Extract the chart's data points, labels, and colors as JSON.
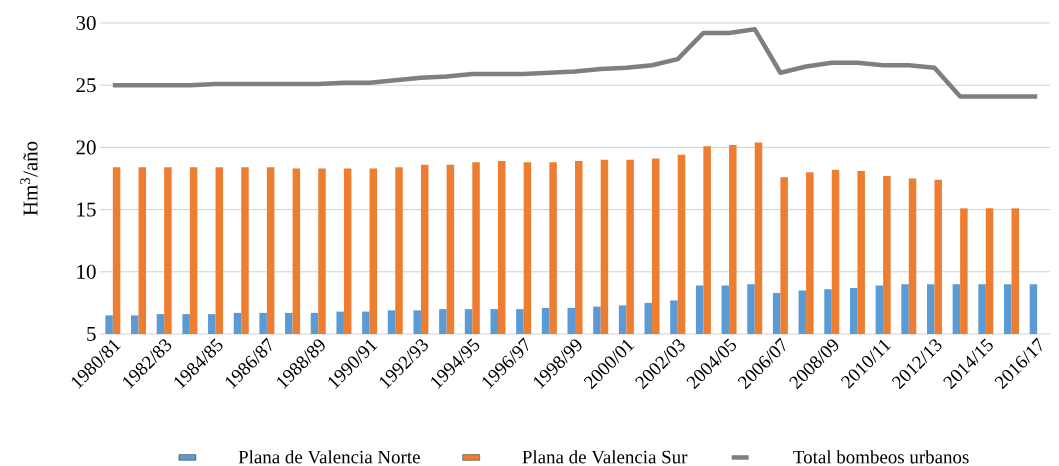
{
  "chart_data": {
    "type": "bar",
    "ylabel": "Hm$^{3}$/año",
    "categories": [
      "1980/81",
      null,
      "1982/83",
      null,
      "1984/85",
      null,
      "1986/87",
      null,
      "1988/89",
      null,
      "1990/91",
      null,
      "1992/93",
      null,
      "1994/95",
      null,
      "1996/97",
      null,
      "1998/99",
      null,
      "2000/01",
      null,
      "2002/03",
      null,
      "2004/05",
      null,
      "2006/07",
      null,
      "2008/09",
      null,
      "2010/11",
      null,
      "2012/13",
      null,
      "2014/15",
      null,
      "2016/17"
    ],
    "series": [
      {
        "name": "Plana de Valencia Norte",
        "color": "#5b9bd5",
        "values": [
          6.5,
          6.5,
          6.6,
          6.6,
          6.6,
          6.7,
          6.7,
          6.7,
          6.7,
          6.8,
          6.8,
          6.9,
          6.9,
          7.0,
          7.0,
          7.0,
          7.0,
          7.1,
          7.1,
          7.2,
          7.3,
          7.5,
          7.7,
          8.9,
          8.9,
          9.0,
          8.3,
          8.5,
          8.6,
          8.7,
          8.9,
          9.0,
          9.0,
          9.0,
          9.0,
          9.0,
          9.0
        ]
      },
      {
        "name": "Plana de Valencia Sur",
        "color": "#ed7d31",
        "values": [
          18.4,
          18.4,
          18.4,
          18.4,
          18.4,
          18.4,
          18.4,
          18.3,
          18.3,
          18.3,
          18.3,
          18.4,
          18.6,
          18.6,
          18.8,
          18.9,
          18.8,
          18.8,
          18.9,
          19.0,
          19.0,
          19.1,
          19.4,
          20.1,
          20.2,
          20.4,
          17.6,
          18.0,
          18.2,
          18.1,
          17.7,
          17.5,
          17.4,
          15.1,
          15.1,
          15.1,
          null
        ]
      },
      {
        "name": "Total bombeos urbanos",
        "type": "line",
        "color": "#7f7f7f",
        "values": [
          25.0,
          25.0,
          25.0,
          25.0,
          25.1,
          25.1,
          25.1,
          25.1,
          25.1,
          25.2,
          25.2,
          25.4,
          25.6,
          25.7,
          25.9,
          25.9,
          25.9,
          26.0,
          26.1,
          26.3,
          26.4,
          26.6,
          27.1,
          29.2,
          29.2,
          29.5,
          26.0,
          26.5,
          26.8,
          26.8,
          26.6,
          26.6,
          26.4,
          24.1,
          24.1,
          24.1,
          24.1
        ]
      }
    ],
    "ylim": [
      5,
      30
    ],
    "yticks": [
      5,
      10,
      15,
      20,
      25,
      30
    ],
    "grid": "y",
    "legend": "bottom"
  }
}
